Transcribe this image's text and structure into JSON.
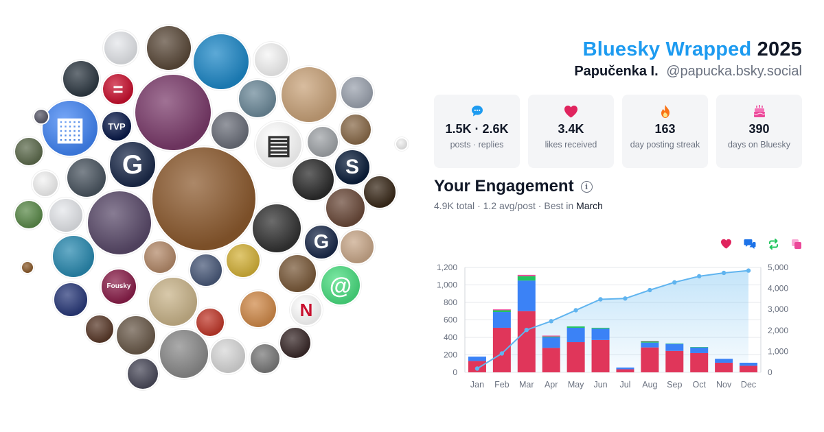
{
  "header": {
    "title_brand": "Bluesky Wrapped",
    "title_year": "2025",
    "name": "Papučenka I.",
    "handle": "@papucka.bsky.social"
  },
  "stats": [
    {
      "icon": "speech-bubble-icon",
      "value": "1.5K · 2.6K",
      "label": "posts · replies",
      "color": "#1d9bf0"
    },
    {
      "icon": "heart-icon",
      "value": "3.4K",
      "label": "likes received",
      "color": "#e0245e"
    },
    {
      "icon": "flame-icon",
      "value": "163",
      "label": "day posting streak",
      "color": "#f97316"
    },
    {
      "icon": "cake-icon",
      "value": "390",
      "label": "days on Bluesky",
      "color": "#ec4899"
    }
  ],
  "engagement": {
    "title": "Your Engagement",
    "total": "4.9K",
    "total_label": "total",
    "avg": "1.2 avg/post",
    "best_prefix": "Best in",
    "best_month": "March",
    "legend_icons": [
      {
        "name": "likes-legend-icon",
        "color": "#e0245e"
      },
      {
        "name": "replies-legend-icon",
        "color": "#1d73e8"
      },
      {
        "name": "reposts-legend-icon",
        "color": "#22c55e"
      },
      {
        "name": "quotes-legend-icon",
        "color": "#ec4899"
      }
    ]
  },
  "chart_data": {
    "type": "bar",
    "categories": [
      "Jan",
      "Feb",
      "Mar",
      "Apr",
      "May",
      "Jun",
      "Jul",
      "Aug",
      "Sep",
      "Oct",
      "Nov",
      "Dec"
    ],
    "series": [
      {
        "values": [
          130,
          510,
          700,
          280,
          345,
          370,
          35,
          285,
          245,
          220,
          110,
          75
        ],
        "color": "#e0365a"
      },
      {
        "values": [
          50,
          180,
          350,
          120,
          165,
          130,
          20,
          55,
          80,
          65,
          45,
          35
        ],
        "color": "#3b82f6"
      },
      {
        "values": [
          0,
          20,
          50,
          10,
          15,
          10,
          0,
          15,
          5,
          5,
          0,
          0
        ],
        "color": "#22c55e"
      },
      {
        "values": [
          0,
          10,
          15,
          10,
          0,
          0,
          0,
          5,
          0,
          0,
          0,
          0
        ],
        "color": "#ec4899"
      }
    ],
    "cumulative": {
      "values": [
        180,
        900,
        2020,
        2440,
        2960,
        3480,
        3520,
        3920,
        4290,
        4580,
        4740,
        4850
      ],
      "color": "#60b4ef"
    },
    "ylim": [
      0,
      1200
    ],
    "yticks": [
      0,
      200,
      400,
      600,
      800,
      1000,
      1200
    ],
    "ytick_labels": [
      "0",
      "200",
      "400",
      "600",
      "800",
      "1,000",
      "1,200"
    ],
    "y2lim": [
      0,
      5000
    ],
    "y2ticks": [
      0,
      1000,
      2000,
      3000,
      4000,
      5000
    ],
    "y2tick_labels": [
      "0",
      "1,000",
      "2,000",
      "3,000",
      "4,000",
      "5,000"
    ],
    "grid": true
  },
  "avatar_cloud": {
    "avatars": [
      {
        "color": "#e5e7eb",
        "glyph": "",
        "ring": "#d1d5db"
      },
      {
        "color": "#5b4a3a",
        "glyph": ""
      },
      {
        "color": "#1e88c7",
        "glyph": ""
      },
      {
        "color": "#f5f5f5",
        "glyph": ""
      },
      {
        "color": "#c9a37a",
        "glyph": ""
      },
      {
        "color": "#2f3a44",
        "glyph": ""
      },
      {
        "color": "#c8102e",
        "glyph": "="
      },
      {
        "color": "#7b3b6b",
        "glyph": ""
      },
      {
        "color": "#6d8a9a",
        "glyph": ""
      },
      {
        "color": "#9ca3af",
        "glyph": ""
      },
      {
        "color": "#4285f4",
        "glyph": "▦"
      },
      {
        "color": "#0a1a4a",
        "glyph": "TVP"
      },
      {
        "color": "#6b6f7a",
        "glyph": ""
      },
      {
        "color": "#ffffff",
        "glyph": "▤",
        "ink": "#333333"
      },
      {
        "color": "#a0a4a8",
        "glyph": ""
      },
      {
        "color": "#8a6b4a",
        "glyph": ""
      },
      {
        "color": "#5d6b4d",
        "glyph": ""
      },
      {
        "color": "#1b2a4a",
        "glyph": "G"
      },
      {
        "color": "#8c5a2e",
        "glyph": ""
      },
      {
        "color": "#2b2b2b",
        "glyph": ""
      },
      {
        "color": "#0a1d3a",
        "glyph": "S"
      },
      {
        "color": "#f3f3f3",
        "glyph": "",
        "ink": "#333333"
      },
      {
        "color": "#4a5560",
        "glyph": ""
      },
      {
        "color": "#333333",
        "glyph": ""
      },
      {
        "color": "#6b4a3a",
        "glyph": ""
      },
      {
        "color": "#3a2a1a",
        "glyph": ""
      },
      {
        "color": "#e5e7eb",
        "glyph": ""
      },
      {
        "color": "#5a4a6a",
        "glyph": ""
      },
      {
        "color": "#b48a6a",
        "glyph": ""
      },
      {
        "color": "#1b2a4a",
        "glyph": "G"
      },
      {
        "color": "#5b8a4a",
        "glyph": ""
      },
      {
        "color": "#2a8ab0",
        "glyph": ""
      },
      {
        "color": "#4a5a7a",
        "glyph": ""
      },
      {
        "color": "#d4b23a",
        "glyph": ""
      },
      {
        "color": "#7a5a3a",
        "glyph": ""
      },
      {
        "color": "#4ade80",
        "glyph": "@"
      },
      {
        "color": "#8a1f4a",
        "glyph": "Fousky"
      },
      {
        "color": "#c9b48a",
        "glyph": ""
      },
      {
        "color": "#2a3a7a",
        "glyph": ""
      },
      {
        "color": "#d08a4a",
        "glyph": ""
      },
      {
        "color": "#ffffff",
        "glyph": "N",
        "ink": "#c8102e"
      },
      {
        "color": "#5a3a2a",
        "glyph": ""
      },
      {
        "color": "#6a5a4a",
        "glyph": ""
      },
      {
        "color": "#c0392b",
        "glyph": ""
      },
      {
        "color": "#8a8a8a",
        "glyph": ""
      },
      {
        "color": "#3a2a2a",
        "glyph": ""
      },
      {
        "color": "#d8d8d8",
        "glyph": ""
      },
      {
        "color": "#7a7a7a",
        "glyph": ""
      },
      {
        "color": "#4a4a5a",
        "glyph": ""
      },
      {
        "color": "#c9a88a",
        "glyph": ""
      },
      {
        "color": "#5a5a6a",
        "glyph": ""
      },
      {
        "color": "#f0f0f0",
        "glyph": ""
      },
      {
        "color": "#8a5a2a",
        "glyph": ""
      }
    ]
  }
}
